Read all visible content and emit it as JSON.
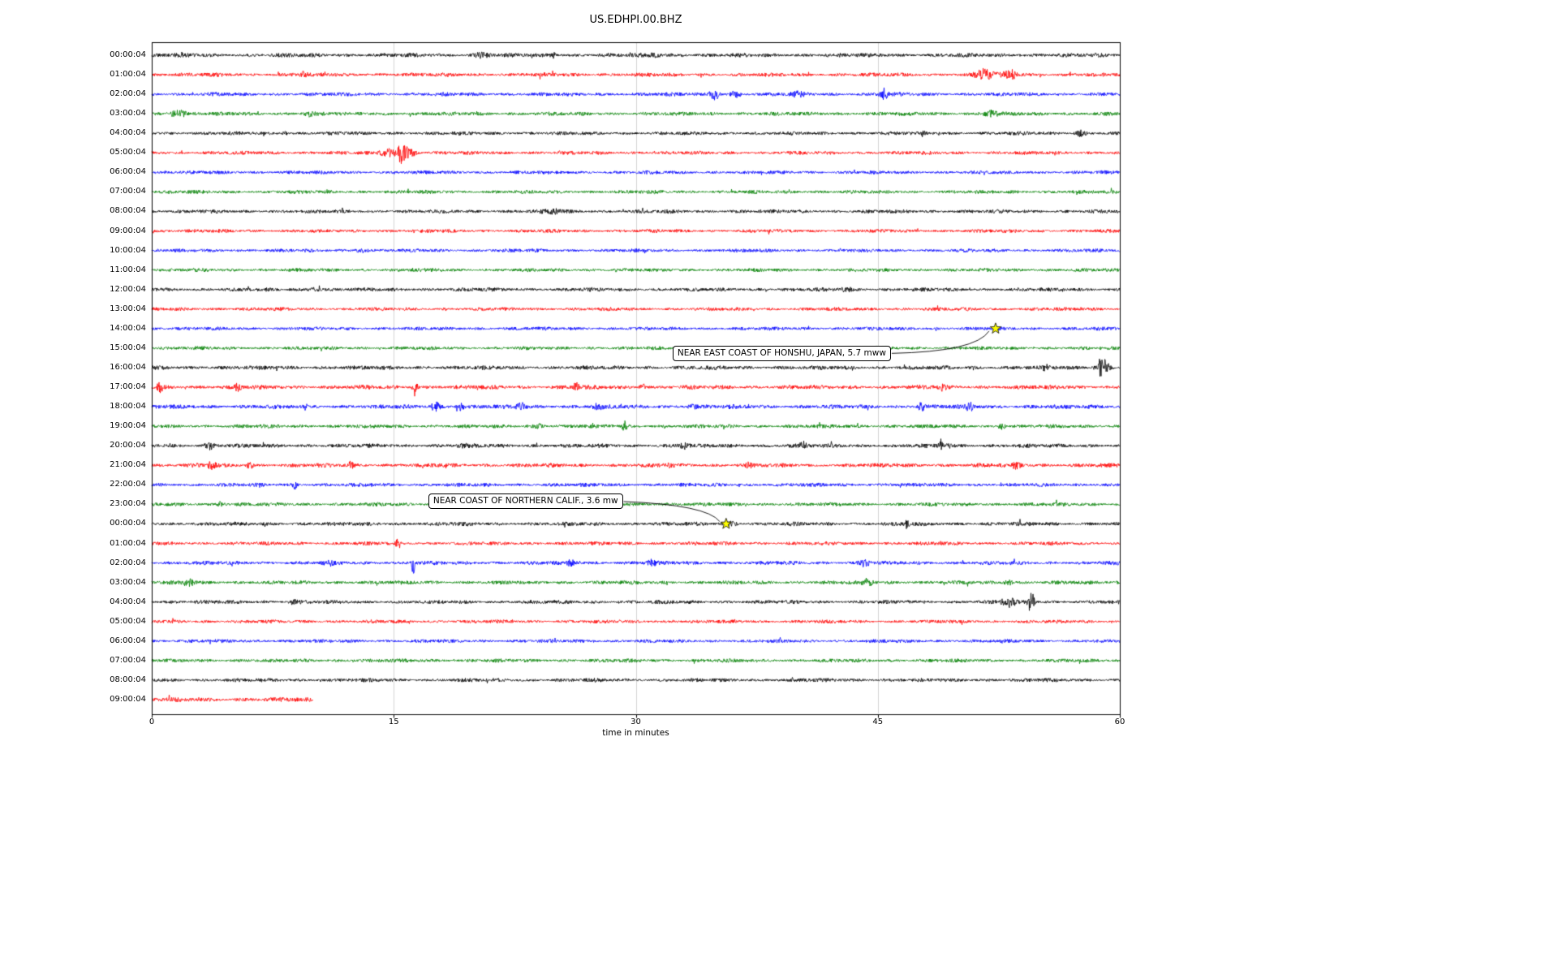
{
  "chart_data": {
    "type": "line",
    "subtype": "seismogram-dayplot",
    "title": "US.EDHPI.00.BHZ",
    "xlabel": "time in minutes",
    "xlim": [
      0,
      60
    ],
    "xticks": [
      0,
      15,
      30,
      45,
      60
    ],
    "grid_x": [
      15,
      30,
      45
    ],
    "grid_color": "#d3d3d3",
    "border_color": "#000000",
    "colors_cycle": [
      "#000000",
      "#ff0000",
      "#0000ff",
      "#008000"
    ],
    "rows": [
      {
        "label": "00:00:04",
        "color": "#000000",
        "base_amp": 2.7,
        "bursts": [
          [
            20.5,
            2.5,
            0.5
          ],
          [
            24.9,
            4,
            0.15
          ],
          [
            31.2,
            2.2,
            0.3
          ]
        ]
      },
      {
        "label": "01:00:04",
        "color": "#ff0000",
        "base_amp": 2.6,
        "bursts": [
          [
            9.4,
            2.5,
            0.2
          ],
          [
            51.6,
            6.5,
            0.5
          ],
          [
            53.2,
            5.5,
            0.4
          ]
        ]
      },
      {
        "label": "02:00:04",
        "color": "#0000ff",
        "base_amp": 2.5,
        "bursts": [
          [
            34.9,
            6,
            0.3
          ],
          [
            36.2,
            4,
            0.3
          ],
          [
            40.0,
            2.5,
            0.4
          ],
          [
            45.4,
            7,
            0.25
          ]
        ]
      },
      {
        "label": "03:00:04",
        "color": "#008000",
        "base_amp": 2.6,
        "bursts": [
          [
            1.6,
            4.5,
            0.5
          ],
          [
            9.7,
            3,
            0.3
          ],
          [
            52.0,
            3.5,
            0.4
          ]
        ]
      },
      {
        "label": "04:00:04",
        "color": "#000000",
        "base_amp": 2.4,
        "bursts": [
          [
            8.3,
            3,
            0.15
          ],
          [
            47.8,
            3.5,
            0.12
          ],
          [
            57.6,
            3.5,
            0.3
          ]
        ]
      },
      {
        "label": "05:00:04",
        "color": "#ff0000",
        "base_amp": 2.4,
        "bursts": [
          [
            14.6,
            5,
            0.4
          ],
          [
            15.5,
            12,
            0.35
          ],
          [
            16.1,
            4,
            0.3
          ]
        ]
      },
      {
        "label": "06:00:04",
        "color": "#0000ff",
        "base_amp": 2.3,
        "bursts": []
      },
      {
        "label": "07:00:04",
        "color": "#008000",
        "base_amp": 2.4,
        "bursts": []
      },
      {
        "label": "08:00:04",
        "color": "#000000",
        "base_amp": 2.5,
        "bursts": [
          [
            25,
            2,
            0.5
          ]
        ]
      },
      {
        "label": "09:00:04",
        "color": "#ff0000",
        "base_amp": 2.3,
        "bursts": []
      },
      {
        "label": "10:00:04",
        "color": "#0000ff",
        "base_amp": 2.3,
        "bursts": [
          [
            13,
            2,
            0.4
          ]
        ]
      },
      {
        "label": "11:00:04",
        "color": "#008000",
        "base_amp": 2.3,
        "bursts": []
      },
      {
        "label": "12:00:04",
        "color": "#000000",
        "base_amp": 2.5,
        "bursts": [
          [
            10,
            2,
            0.5
          ],
          [
            43,
            2,
            0.4
          ]
        ]
      },
      {
        "label": "13:00:04",
        "color": "#ff0000",
        "base_amp": 2.3,
        "bursts": []
      },
      {
        "label": "14:00:04",
        "color": "#0000ff",
        "base_amp": 2.3,
        "bursts": []
      },
      {
        "label": "15:00:04",
        "color": "#008000",
        "base_amp": 2.3,
        "bursts": []
      },
      {
        "label": "16:00:04",
        "color": "#000000",
        "base_amp": 2.7,
        "bursts": [
          [
            55.4,
            2.5,
            0.2
          ],
          [
            58.9,
            13,
            0.35
          ]
        ]
      },
      {
        "label": "17:00:04",
        "color": "#ff0000",
        "base_amp": 2.8,
        "bursts": [
          [
            0.5,
            5,
            0.2
          ],
          [
            5.3,
            4,
            0.2
          ],
          [
            16.3,
            6,
            0.2
          ],
          [
            26.3,
            5,
            0.15
          ],
          [
            30.4,
            5,
            0.15
          ],
          [
            49.0,
            3,
            0.2
          ]
        ]
      },
      {
        "label": "18:00:04",
        "color": "#0000ff",
        "base_amp": 2.8,
        "bursts": [
          [
            17.6,
            4.5,
            0.3
          ],
          [
            19.1,
            4,
            0.25
          ],
          [
            22.9,
            4.5,
            0.25
          ],
          [
            27.6,
            3.5,
            0.3
          ],
          [
            33.5,
            3,
            0.3
          ],
          [
            47.7,
            4.5,
            0.2
          ],
          [
            50.7,
            4.5,
            0.2
          ]
        ]
      },
      {
        "label": "19:00:04",
        "color": "#008000",
        "base_amp": 2.5,
        "bursts": [
          [
            24,
            2.5,
            0.3
          ],
          [
            29.3,
            5,
            0.15
          ],
          [
            52.7,
            5,
            0.18
          ]
        ]
      },
      {
        "label": "20:00:04",
        "color": "#000000",
        "base_amp": 2.7,
        "bursts": [
          [
            3.6,
            3.5,
            0.3
          ],
          [
            19.3,
            3.5,
            0.2
          ],
          [
            33,
            3,
            0.3
          ],
          [
            40.4,
            4,
            0.2
          ],
          [
            48.9,
            7,
            0.1
          ],
          [
            49.4,
            6,
            0.1
          ]
        ]
      },
      {
        "label": "21:00:04",
        "color": "#ff0000",
        "base_amp": 2.7,
        "bursts": [
          [
            3.7,
            4,
            0.25
          ],
          [
            6.1,
            3.5,
            0.2
          ],
          [
            12.3,
            4.5,
            0.18
          ],
          [
            32.1,
            3.5,
            0.2
          ],
          [
            37,
            3,
            0.2
          ],
          [
            53.6,
            3.5,
            0.25
          ]
        ]
      },
      {
        "label": "22:00:04",
        "color": "#0000ff",
        "base_amp": 2.5,
        "bursts": [
          [
            8.9,
            4.5,
            0.15
          ]
        ]
      },
      {
        "label": "23:00:04",
        "color": "#008000",
        "base_amp": 2.5,
        "bursts": [
          [
            4.3,
            4,
            0.2
          ]
        ]
      },
      {
        "label": "00:00:04",
        "color": "#000000",
        "base_amp": 2.6,
        "bursts": [
          [
            36.0,
            2.5,
            0.3
          ],
          [
            46.8,
            4.5,
            0.12
          ]
        ]
      },
      {
        "label": "01:00:04",
        "color": "#ff0000",
        "base_amp": 2.4,
        "bursts": [
          [
            15.3,
            6,
            0.15
          ]
        ]
      },
      {
        "label": "02:00:04",
        "color": "#0000ff",
        "base_amp": 2.6,
        "bursts": [
          [
            11,
            3,
            0.3
          ],
          [
            16.2,
            20,
            0.08
          ],
          [
            26,
            3,
            0.3
          ],
          [
            31,
            3,
            0.25
          ],
          [
            44.2,
            3.5,
            0.3
          ]
        ]
      },
      {
        "label": "03:00:04",
        "color": "#008000",
        "base_amp": 2.5,
        "bursts": [
          [
            2.3,
            4,
            0.4
          ],
          [
            44.4,
            4,
            0.3
          ],
          [
            53.1,
            3,
            0.3
          ]
        ]
      },
      {
        "label": "04:00:04",
        "color": "#000000",
        "base_amp": 2.5,
        "bursts": [
          [
            8.8,
            2.5,
            0.3
          ],
          [
            53.1,
            6,
            0.4
          ],
          [
            54.5,
            13,
            0.18
          ]
        ]
      },
      {
        "label": "05:00:04",
        "color": "#ff0000",
        "base_amp": 2.3,
        "bursts": []
      },
      {
        "label": "06:00:04",
        "color": "#0000ff",
        "base_amp": 2.3,
        "bursts": []
      },
      {
        "label": "07:00:04",
        "color": "#008000",
        "base_amp": 2.4,
        "bursts": []
      },
      {
        "label": "08:00:04",
        "color": "#000000",
        "base_amp": 2.5,
        "bursts": []
      },
      {
        "label": "09:00:04",
        "color": "#ff0000",
        "base_amp": 2.9,
        "coverage_minutes": [
          0,
          10
        ],
        "bursts": []
      }
    ],
    "annotations": [
      {
        "text": "NEAR EAST COAST OF HONSHU, JAPAN, 5.7 mww",
        "row_index": 14,
        "row_label": "14:00:04",
        "x_minutes": 52.3,
        "marker": "yellow-star",
        "marker_color": "#ffff00"
      },
      {
        "text": "NEAR COAST OF NORTHERN CALIF., 3.6 mw",
        "row_index": 24,
        "row_label": "00:00:04",
        "x_minutes": 35.6,
        "marker": "yellow-star",
        "marker_color": "#ffff00"
      }
    ]
  }
}
